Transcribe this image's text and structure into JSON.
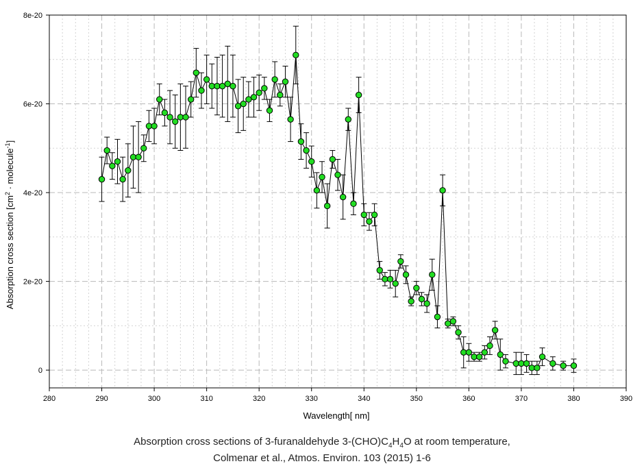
{
  "chart_data": {
    "type": "scatter",
    "title": "",
    "xlabel": "Wavelength[ nm]",
    "ylabel_parts": [
      "Absorption cross section [cm",
      "2",
      " · molecule",
      "-1",
      "]"
    ],
    "xlim": [
      280,
      390
    ],
    "ylim": [
      -4e-21,
      8e-20
    ],
    "x_ticks": [
      280,
      290,
      300,
      310,
      320,
      330,
      340,
      350,
      360,
      370,
      380,
      390
    ],
    "y_ticks": [
      0,
      2e-20,
      4e-20,
      6e-20,
      8e-20
    ],
    "y_tick_labels": [
      "0",
      "2e-20",
      "4e-20",
      "6e-20",
      "8e-20"
    ],
    "grid": true,
    "marker_color": "#22dd22",
    "line_color": "#000000",
    "x": [
      290,
      291,
      292,
      293,
      294,
      295,
      296,
      297,
      298,
      299,
      300,
      301,
      302,
      303,
      304,
      305,
      306,
      307,
      308,
      309,
      310,
      311,
      312,
      313,
      314,
      315,
      316,
      317,
      318,
      319,
      320,
      321,
      322,
      323,
      324,
      325,
      326,
      327,
      328,
      329,
      330,
      331,
      332,
      333,
      334,
      335,
      336,
      337,
      338,
      339,
      340,
      341,
      342,
      343,
      344,
      345,
      346,
      347,
      348,
      349,
      350,
      351,
      352,
      353,
      354,
      355,
      356,
      357,
      358,
      359,
      360,
      361,
      362,
      363,
      364,
      365,
      366,
      367,
      369,
      370,
      371,
      372,
      373,
      374,
      376,
      378,
      380
    ],
    "y": [
      4.3,
      4.95,
      4.6,
      4.7,
      4.3,
      4.5,
      4.8,
      4.8,
      5.0,
      5.5,
      5.5,
      6.1,
      5.8,
      5.7,
      5.6,
      5.7,
      5.7,
      6.1,
      6.7,
      6.3,
      6.55,
      6.4,
      6.4,
      6.4,
      6.45,
      6.4,
      5.95,
      6.0,
      6.1,
      6.15,
      6.25,
      6.35,
      5.85,
      6.55,
      6.2,
      6.5,
      5.65,
      7.1,
      5.15,
      4.95,
      4.7,
      4.05,
      4.35,
      3.7,
      4.75,
      4.4,
      3.9,
      5.65,
      3.75,
      6.2,
      3.5,
      3.35,
      3.5,
      2.25,
      2.05,
      2.05,
      1.95,
      2.45,
      2.15,
      1.55,
      1.85,
      1.6,
      1.5,
      2.15,
      1.2,
      4.05,
      1.05,
      1.1,
      0.85,
      0.4,
      0.4,
      0.3,
      0.3,
      0.4,
      0.55,
      0.9,
      0.35,
      0.2,
      0.15,
      0.15,
      0.15,
      0.05,
      0.05,
      0.3,
      0.15,
      0.1,
      0.1
    ],
    "err": [
      0.5,
      0.3,
      0.3,
      0.5,
      0.5,
      0.6,
      0.7,
      0.8,
      0.3,
      0.35,
      0.4,
      0.35,
      0.3,
      0.6,
      0.6,
      0.75,
      0.7,
      0.4,
      0.55,
      0.4,
      0.55,
      0.5,
      0.65,
      0.7,
      0.85,
      0.7,
      0.6,
      0.6,
      0.4,
      0.45,
      0.4,
      0.25,
      0.25,
      0.4,
      0.25,
      0.35,
      0.5,
      0.65,
      0.4,
      0.4,
      0.35,
      0.4,
      0.35,
      0.5,
      0.2,
      0.35,
      0.5,
      0.25,
      0.25,
      0.4,
      0.25,
      0.2,
      0.25,
      0.2,
      0.15,
      0.2,
      0.3,
      0.15,
      0.2,
      0.1,
      0.15,
      0.15,
      0.2,
      0.35,
      0.25,
      0.35,
      0.1,
      0.1,
      0.15,
      0.35,
      0.2,
      0.1,
      0.1,
      0.15,
      0.2,
      0.2,
      0.35,
      0.15,
      0.25,
      0.25,
      0.2,
      0.15,
      0.15,
      0.2,
      0.15,
      0.1,
      0.15
    ],
    "y_scale_factor": 1e-20
  },
  "caption": {
    "line1_pre": "Absorption cross sections of 3-furanaldehyde 3-(CHO)C",
    "sub1": "4",
    "mid": "H",
    "sub2": "4",
    "line1_post": "O at room temperature,",
    "line2": "Colmenar et al., Atmos. Environ. 103 (2015) 1-6"
  }
}
